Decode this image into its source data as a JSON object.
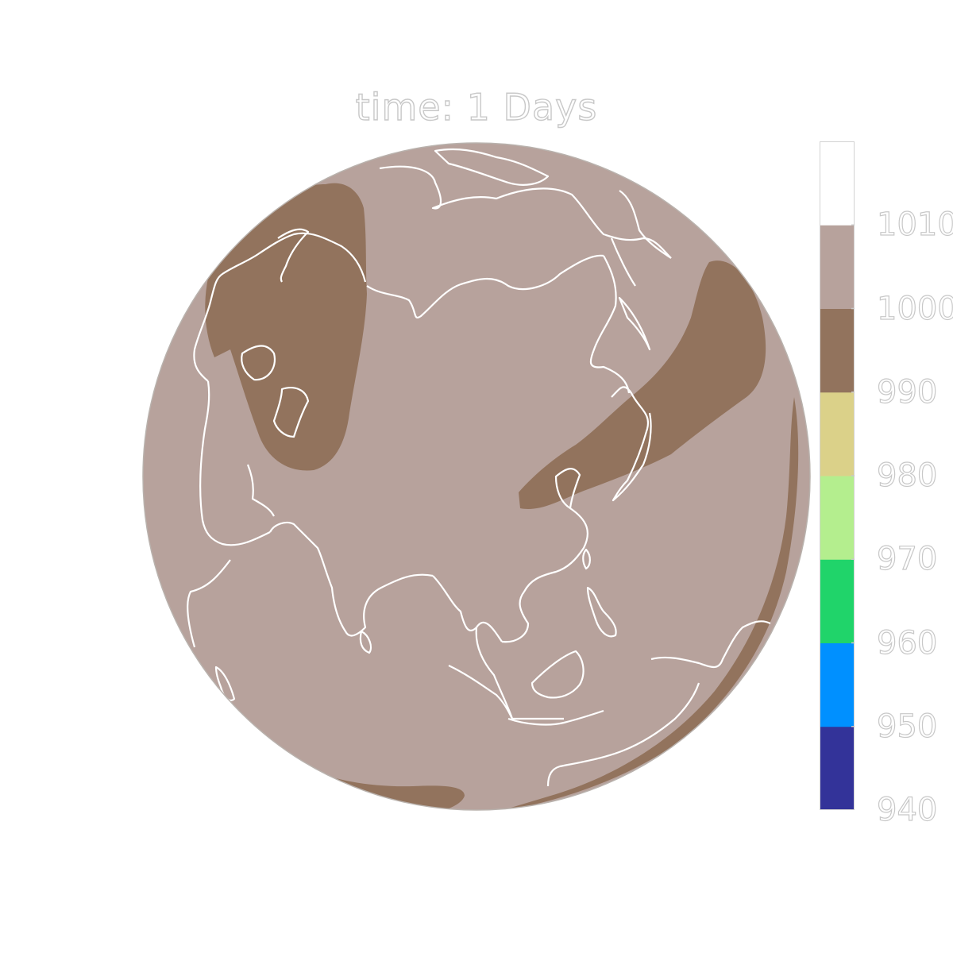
{
  "title": "time: 1 Days",
  "colors": {
    "background": "#ffffff",
    "coastline": "#ffffff",
    "globe_outline": "#b9b2ad"
  },
  "map": {
    "projection": "orthographic",
    "center_region": "Asia",
    "features": [
      "coastlines",
      "pressure-contours"
    ],
    "fill_levels": [
      {
        "region": "background-field",
        "range": [
          1000,
          1010
        ]
      },
      {
        "region": "europe-low",
        "range": [
          990,
          1000
        ]
      },
      {
        "region": "pacific-low-band",
        "range": [
          990,
          1000
        ]
      },
      {
        "region": "southern-rim-band",
        "range": [
          990,
          1000
        ]
      }
    ]
  },
  "colorbar": {
    "levels": [
      {
        "lower": 940,
        "upper": 950,
        "color": "#333399"
      },
      {
        "lower": 950,
        "upper": 960,
        "color": "#0090ff"
      },
      {
        "lower": 960,
        "upper": 970,
        "color": "#20d46a"
      },
      {
        "lower": 970,
        "upper": 980,
        "color": "#b4ee8e"
      },
      {
        "lower": 980,
        "upper": 990,
        "color": "#dbd189"
      },
      {
        "lower": 990,
        "upper": 1000,
        "color": "#92735d"
      },
      {
        "lower": 1000,
        "upper": 1010,
        "color": "#b7a29c"
      },
      {
        "lower": 1010,
        "upper": 1020,
        "color": "#ffffff"
      }
    ],
    "tick_labels": [
      "940",
      "950",
      "960",
      "970",
      "980",
      "990",
      "1000",
      "1010"
    ]
  }
}
